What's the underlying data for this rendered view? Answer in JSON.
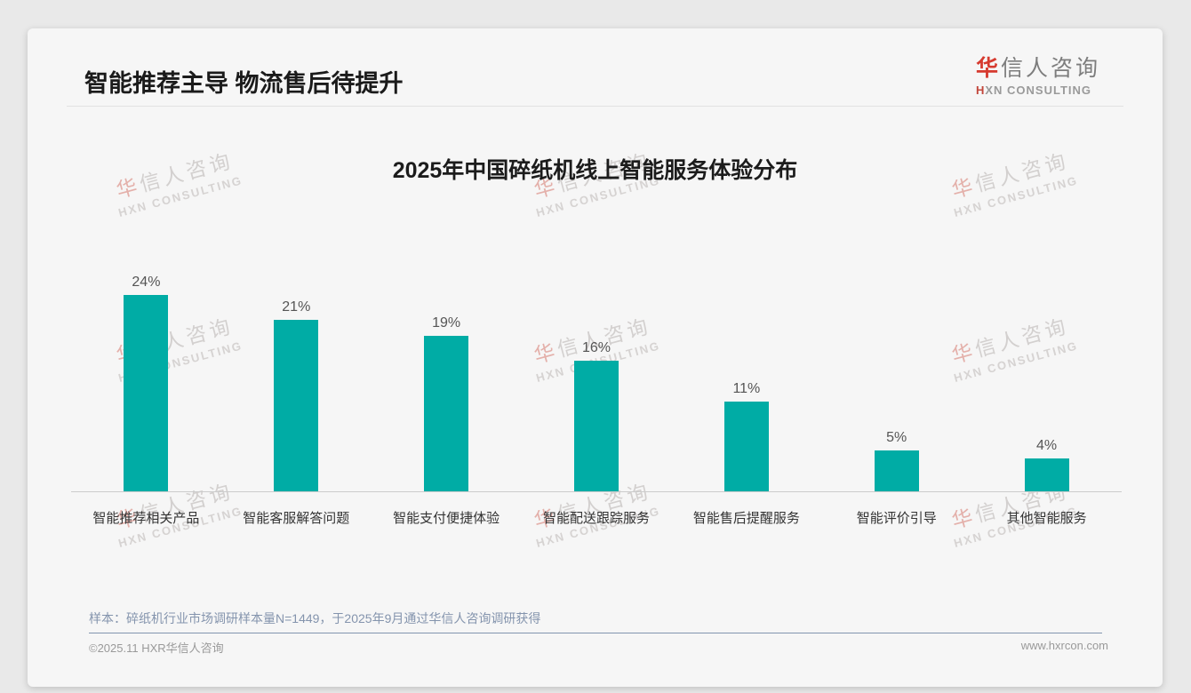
{
  "page": {
    "header": {
      "title": "智能推荐主导 物流售后待提升",
      "logo": {
        "cn_first": "华",
        "cn_rest": "信人咨询",
        "en_first": "H",
        "en_rest": "XN CONSULTING"
      }
    },
    "watermark": {
      "cn_first": "华",
      "cn_rest": "信人咨询",
      "en": "HXN CONSULTING"
    },
    "footnote": "样本：碎纸机行业市场调研样本量N=1449，于2025年9月通过华信人咨询调研获得",
    "footer": {
      "copyright": "©2025.11 HXR华信人咨询",
      "website": "www.hxrcon.com"
    }
  },
  "chart_data": {
    "type": "bar",
    "title": "2025年中国碎纸机线上智能服务体验分布",
    "categories": [
      "智能推荐相关产品",
      "智能客服解答问题",
      "智能支付便捷体验",
      "智能配送跟踪服务",
      "智能售后提醒服务",
      "智能评价引导",
      "其他智能服务"
    ],
    "values": [
      24,
      21,
      19,
      16,
      11,
      5,
      4
    ],
    "value_labels": [
      "24%",
      "21%",
      "19%",
      "16%",
      "11%",
      "5%",
      "4%"
    ],
    "unit": "%",
    "ylim": [
      0,
      26
    ],
    "grid": false,
    "legend": null,
    "xlabel": "",
    "ylabel": "",
    "bar_color": "#00ACA5",
    "axis_line_color": "#cccccc"
  }
}
